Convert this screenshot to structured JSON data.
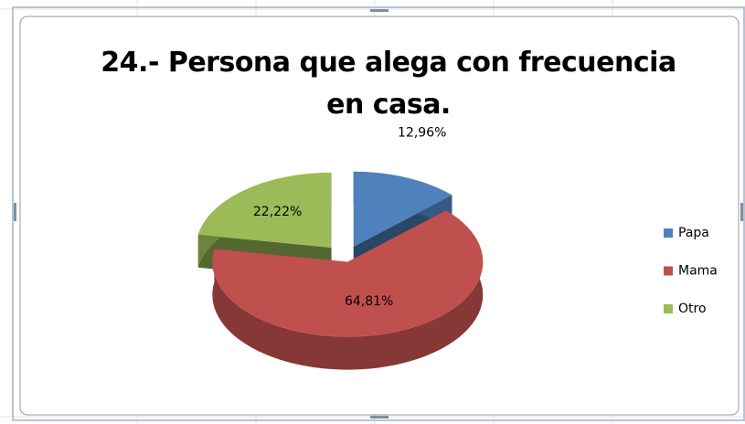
{
  "chart_data": {
    "type": "pie",
    "title": "24.- Persona que alega con frecuencia en casa.",
    "categories": [
      "Papa",
      "Mama",
      "Otro"
    ],
    "values": [
      12.96,
      64.81,
      22.22
    ],
    "value_labels": [
      "12,96%",
      "64,81%",
      "22,22%"
    ],
    "colors": [
      "#4f81bd",
      "#c0504d",
      "#9bbb59"
    ],
    "legend": "right"
  }
}
